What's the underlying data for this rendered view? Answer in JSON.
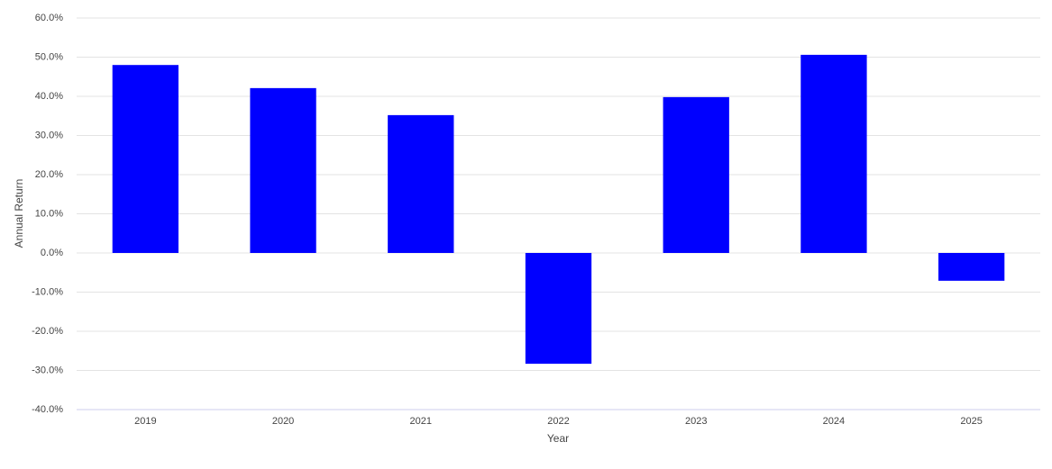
{
  "chart_data": {
    "type": "bar",
    "x_label": "Year",
    "y_label": "Annual Return",
    "categories": [
      "2019",
      "2020",
      "2021",
      "2022",
      "2023",
      "2024",
      "2025"
    ],
    "values": [
      48.0,
      42.1,
      35.2,
      -28.3,
      39.8,
      50.6,
      -7.1
    ],
    "color": "#0000ff",
    "ylim": [
      -40,
      60
    ],
    "yticks": [
      {
        "value": -40,
        "label": "-40.0%"
      },
      {
        "value": -30,
        "label": "-30.0%"
      },
      {
        "value": -20,
        "label": "-20.0%"
      },
      {
        "value": -10,
        "label": "-10.0%"
      },
      {
        "value": 0,
        "label": "0.0%"
      },
      {
        "value": 10,
        "label": "10.0%"
      },
      {
        "value": 20,
        "label": "20.0%"
      },
      {
        "value": 30,
        "label": "30.0%"
      },
      {
        "value": 40,
        "label": "40.0%"
      },
      {
        "value": 50,
        "label": "50.0%"
      },
      {
        "value": 60,
        "label": "60.0%"
      }
    ],
    "grid": true
  }
}
